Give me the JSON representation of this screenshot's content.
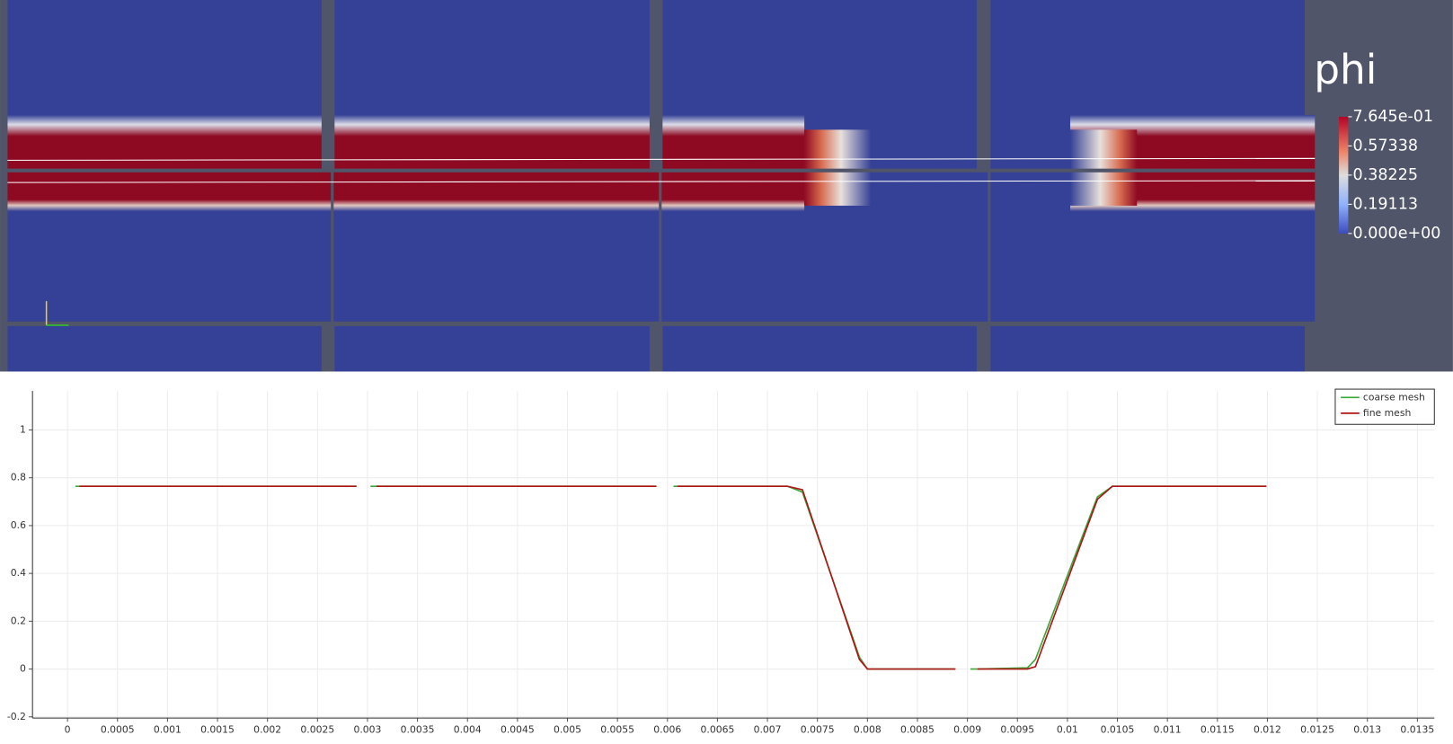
{
  "render_view": {
    "colorbar": {
      "title": "phi",
      "labels": [
        "7.645e-01",
        "0.57338",
        "0.38225",
        "0.19113",
        "0.000e+00"
      ]
    }
  },
  "chart_data": {
    "type": "line",
    "x": [
      8e-05,
      0.00012,
      0.00289,
      0.003,
      0.00303,
      0.00309,
      0.00589,
      0.006,
      0.00606,
      0.0061,
      0.0072,
      0.00735,
      0.00792,
      0.008,
      0.00888,
      0.009,
      0.00903,
      0.0091,
      0.0096,
      0.00968,
      0.0103,
      0.01045,
      0.01199
    ],
    "series": [
      {
        "name": "coarse mesh",
        "color": "#3aa83a",
        "values": [
          0.7645,
          0.7645,
          0.7645,
          null,
          0.7645,
          0.7645,
          0.7645,
          null,
          0.7645,
          0.7645,
          0.7645,
          0.74,
          0.05,
          0,
          0,
          null,
          0,
          0,
          0.005,
          0.04,
          0.72,
          0.7645,
          0.7645
        ]
      },
      {
        "name": "fine mesh",
        "color": "#b01515",
        "values": [
          null,
          0.7645,
          0.7645,
          null,
          null,
          0.7645,
          0.7645,
          null,
          null,
          0.7645,
          0.7645,
          0.75,
          0.04,
          0,
          0,
          null,
          null,
          0,
          0,
          0.01,
          0.71,
          0.7645,
          0.7645
        ]
      }
    ],
    "xlim": [
      -0.00035,
      0.01367
    ],
    "ylim": [
      -0.205,
      1.163
    ],
    "xticks": [
      0,
      0.0005,
      0.001,
      0.0015,
      0.002,
      0.0025,
      0.003,
      0.0035,
      0.004,
      0.0045,
      0.005,
      0.0055,
      0.006,
      0.0065,
      0.007,
      0.0075,
      0.008,
      0.0085,
      0.009,
      0.0095,
      0.01,
      0.0105,
      0.011,
      0.0115,
      0.012,
      0.0125,
      0.013,
      0.0135
    ],
    "yticks": [
      -0.2,
      0,
      0.2,
      0.4,
      0.6,
      0.8,
      1
    ],
    "grid": true,
    "legend": "top-right"
  }
}
